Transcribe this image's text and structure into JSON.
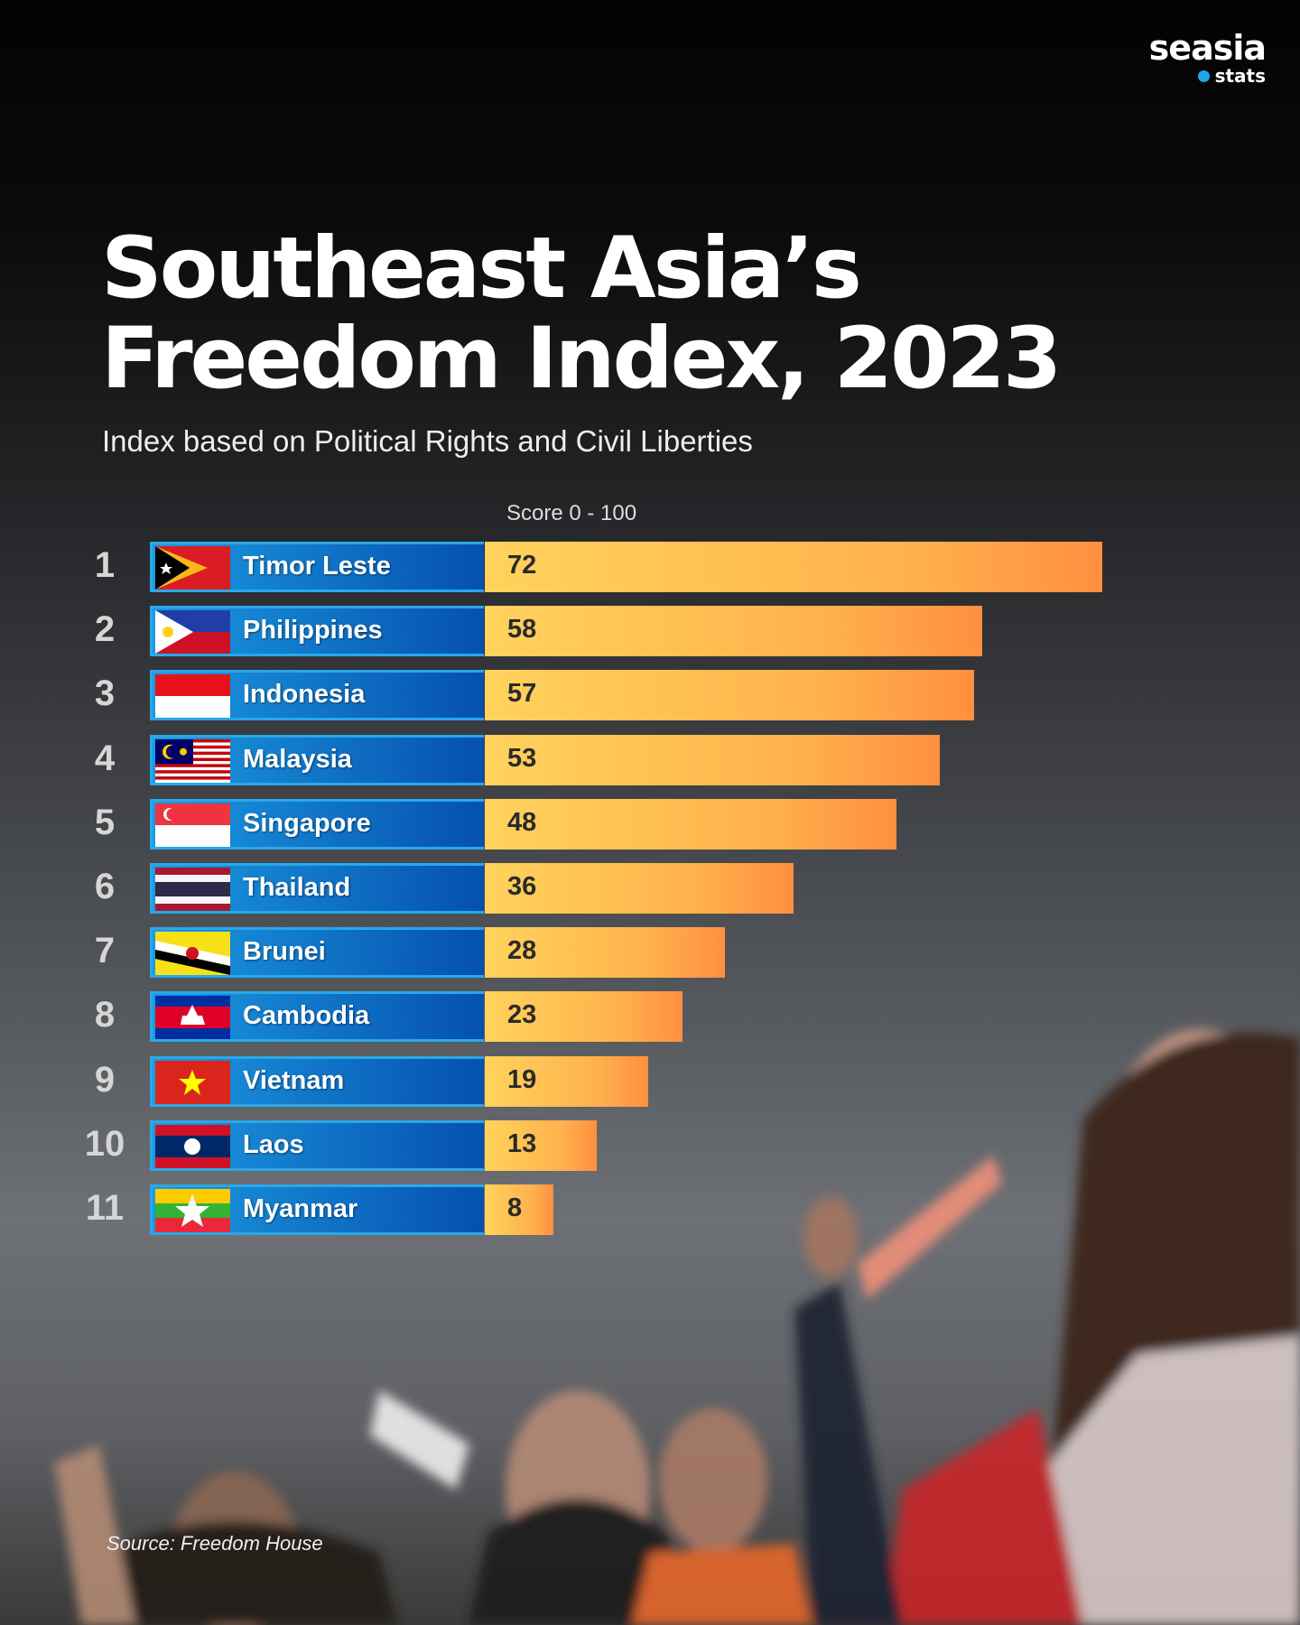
{
  "logo": {
    "line1": "seasia",
    "line2": "stats"
  },
  "title_line1": "Southeast Asia’s",
  "title_line2": "Freedom Index, 2023",
  "subtitle": "Index based on Political Rights and Civil Liberties",
  "source": "Source: Freedom House",
  "colors": {
    "label_bar": "#0a5fbf",
    "score_bar_start": "#ffd35c",
    "score_bar_end": "#ff8f40"
  },
  "chart_data": {
    "type": "bar",
    "orientation": "horizontal",
    "title": "Southeast Asia’s Freedom Index, 2023",
    "subtitle": "Index based on Political Rights and Civil Liberties",
    "xlabel": "Score 0 - 100",
    "xlim": [
      0,
      100
    ],
    "ranks": [
      "1",
      "2",
      "3",
      "4",
      "5",
      "6",
      "7",
      "8",
      "9",
      "10",
      "11"
    ],
    "categories": [
      "Timor Leste",
      "Philippines",
      "Indonesia",
      "Malaysia",
      "Singapore",
      "Thailand",
      "Brunei",
      "Cambodia",
      "Vietnam",
      "Laos",
      "Myanmar"
    ],
    "values": [
      72,
      58,
      57,
      53,
      48,
      36,
      28,
      23,
      19,
      13,
      8
    ]
  }
}
